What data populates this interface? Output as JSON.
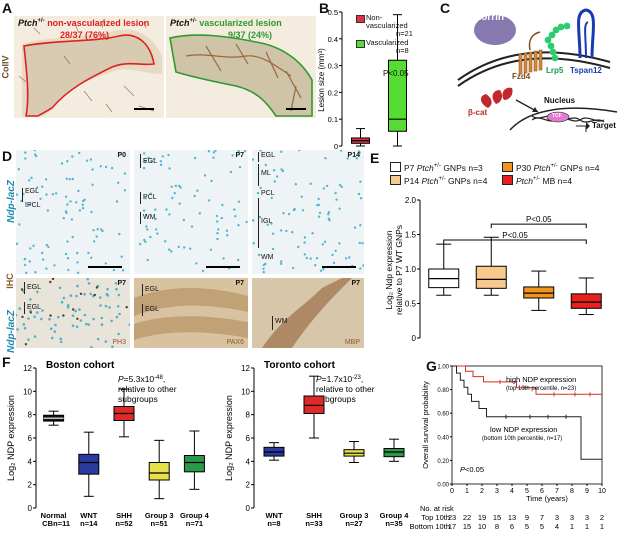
{
  "figure": {
    "panel_letters": [
      "A",
      "B",
      "C",
      "D",
      "E",
      "F",
      "G"
    ],
    "panel_a": {
      "left_label_genotype": "Ptch",
      "left_label_sup": "+/-",
      "left_label_rest": " non-vascularized lesion",
      "left_count": "28/37 (76%)",
      "right_label_genotype": "Ptch",
      "right_label_sup": "+/-",
      "right_label_rest": " vascularized lesion",
      "right_count": "9/37 (24%)",
      "side_label": "CollV",
      "colors": {
        "red": "#e02020",
        "green": "#2e9a2e",
        "stain": "#8b5a2b"
      }
    },
    "panel_c": {
      "norrin": "Norrin",
      "fzd4": "Fzd4",
      "lrp5": "Lrp5",
      "tspan12": "Tspan12",
      "beta_cat": "β-cat",
      "nucleus": "Nucleus",
      "tcf": "TCF",
      "target": "Target"
    },
    "panel_d": {
      "side_label_top": "Ndp-lacZ",
      "side_label_ihc": "IHC",
      "side_label_bottom": "Ndp-lacZ",
      "tiles": [
        {
          "age": "P0",
          "labels": [
            "EGL",
            "IPCL"
          ]
        },
        {
          "age": "P7",
          "labels": [
            "EGL",
            "PCL",
            "WM"
          ]
        },
        {
          "age": "P14",
          "labels": [
            "EGL",
            "ML",
            "PCL",
            "IGL",
            "WM"
          ]
        },
        {
          "age": "P7",
          "labels": [
            "EGL",
            "EGL"
          ],
          "marker": "PH3"
        },
        {
          "age": "P7",
          "labels": [
            "EGL",
            "EGL"
          ],
          "marker": "PAX6"
        },
        {
          "age": "P7",
          "labels": [
            "WM"
          ],
          "marker": "MBP"
        }
      ]
    },
    "panel_b": {
      "chart_data": {
        "type": "box",
        "ylabel": "Lesion size (mm³)",
        "ylim": [
          0,
          0.5
        ],
        "yticks": [
          "0",
          "0.1",
          "0.2",
          "0.3",
          "0.4",
          "0.5"
        ],
        "annotation": "P<0.05",
        "series": [
          {
            "name": "Non-vascularized",
            "n": "n=21",
            "color": "#e0304a",
            "min": 0.0,
            "q1": 0.01,
            "median": 0.02,
            "q3": 0.03,
            "max": 0.065
          },
          {
            "name": "Vascularized",
            "n": "n=8",
            "color": "#55dd33",
            "min": 0.0,
            "q1": 0.055,
            "median": 0.1,
            "q3": 0.32,
            "max": 0.49
          }
        ]
      },
      "legend": [
        {
          "line1": "Non-",
          "line2": "vascularized",
          "n": "n=21"
        },
        {
          "line1": "Vascularized",
          "line2": "",
          "n": "n=8"
        }
      ]
    },
    "panel_e": {
      "chart_data": {
        "type": "box",
        "ylabel_line1": "Log",
        "ylabel_line2": "relative to P7 WT GNPs",
        "ylim": [
          0,
          2.0
        ],
        "yticks": [
          "0",
          "0.5",
          "1.0",
          "1.5",
          "2.0"
        ],
        "annotations": [
          "P<0.05",
          "P<0.05"
        ],
        "series": [
          {
            "name": "P7 Ptch+/- GNPs n=3",
            "color": "#ffffff",
            "min": 0.62,
            "q1": 0.73,
            "median": 0.86,
            "q3": 1.0,
            "max": 1.36
          },
          {
            "name": "P14 Ptch+/- GNPs n=4",
            "color": "#f7c98e",
            "min": 0.62,
            "q1": 0.72,
            "median": 0.85,
            "q3": 1.04,
            "max": 1.46
          },
          {
            "name": "P30 Ptch+/- GNPs n=4",
            "color": "#f0941e",
            "min": 0.4,
            "q1": 0.58,
            "median": 0.65,
            "q3": 0.74,
            "max": 0.97
          },
          {
            "name": "Ptch+/- MB n=4",
            "color": "#e8201e",
            "min": 0.34,
            "q1": 0.43,
            "median": 0.52,
            "q3": 0.64,
            "max": 0.87
          }
        ]
      },
      "legend": [
        {
          "pre": "P7 ",
          "gen": "Ptch",
          "sup": "+/-",
          "post": " GNPs n=3",
          "color": "#ffffff"
        },
        {
          "pre": "P30 ",
          "gen": "Ptch",
          "sup": "+/-",
          "post": " GNPs n=4",
          "color": "#f0941e"
        },
        {
          "pre": "P14 ",
          "gen": "Ptch",
          "sup": "+/-",
          "post": " GNPs n=4",
          "color": "#f7c98e"
        },
        {
          "pre": "",
          "gen": "Ptch",
          "sup": "+/-",
          "post": " MB n=4",
          "color": "#e8201e"
        }
      ]
    },
    "panel_f_boston": {
      "title": "Boston cohort",
      "stat_line1": "P=5.3x10",
      "stat_exp": "-48",
      "stat_line1_end": ",",
      "stat_line2": "relative to other",
      "stat_line3": "subgroups",
      "chart_data": {
        "type": "box",
        "ylabel": "Log2 NDP expression",
        "ylim": [
          0,
          12
        ],
        "yticks": [
          "0",
          "2",
          "4",
          "6",
          "8",
          "10",
          "12"
        ],
        "categories": [
          "Normal CB",
          "WNT",
          "SHH",
          "Group 3",
          "Group 4"
        ],
        "series": [
          {
            "name": "Normal",
            "sub": "CB",
            "n": "n=11",
            "color": "#111111",
            "min": 7.1,
            "q1": 7.45,
            "median": 7.7,
            "q3": 7.95,
            "max": 8.3
          },
          {
            "name": "WNT",
            "sub": "",
            "n": "n=14",
            "color": "#2a3a9e",
            "min": 1.0,
            "q1": 2.9,
            "median": 3.9,
            "q3": 4.6,
            "max": 6.5
          },
          {
            "name": "SHH",
            "sub": "",
            "n": "n=52",
            "color": "#e02a2a",
            "min": 6.1,
            "q1": 7.5,
            "median": 8.1,
            "q3": 8.7,
            "max": 10.2
          },
          {
            "name": "Group 3",
            "sub": "",
            "n": "n=51",
            "color": "#e6e04a",
            "min": 0.8,
            "q1": 2.4,
            "median": 3.0,
            "q3": 3.9,
            "max": 5.8
          },
          {
            "name": "Group 4",
            "sub": "",
            "n": "n=71",
            "color": "#2a9a4a",
            "min": 1.6,
            "q1": 3.1,
            "median": 3.9,
            "q3": 4.5,
            "max": 6.6
          }
        ]
      }
    },
    "panel_f_toronto": {
      "title": "Toronto cohort",
      "stat_line1": "P=1.7x10",
      "stat_exp": "-23",
      "stat_line1_end": ",",
      "stat_line2": "relative to other",
      "stat_line3": "subgroups",
      "chart_data": {
        "type": "box",
        "ylabel": "Log2 NDP expression",
        "ylim": [
          0,
          12
        ],
        "yticks": [
          "0",
          "2",
          "4",
          "6",
          "8",
          "10",
          "12"
        ],
        "categories": [
          "WNT",
          "SHH",
          "Group 3",
          "Group 4"
        ],
        "series": [
          {
            "name": "WNT",
            "n": "n=8",
            "color": "#2a3a9e",
            "min": 4.1,
            "q1": 4.45,
            "median": 4.8,
            "q3": 5.2,
            "max": 5.6
          },
          {
            "name": "SHH",
            "n": "n=33",
            "color": "#e02a2a",
            "min": 6.0,
            "q1": 8.1,
            "median": 8.8,
            "q3": 9.6,
            "max": 11.3
          },
          {
            "name": "Group 3",
            "n": "n=27",
            "color": "#e6e04a",
            "min": 3.9,
            "q1": 4.45,
            "median": 4.7,
            "q3": 5.0,
            "max": 5.7
          },
          {
            "name": "Group 4",
            "n": "n=35",
            "color": "#2a9a4a",
            "min": 4.0,
            "q1": 4.4,
            "median": 4.8,
            "q3": 5.1,
            "max": 5.9
          }
        ]
      }
    },
    "panel_g": {
      "chart_data": {
        "type": "line",
        "xlabel": "Time (years)",
        "ylabel": "Overall survival probability",
        "xlim": [
          0,
          10
        ],
        "ylim": [
          0,
          1.0
        ],
        "xticks": [
          "0",
          "1",
          "2",
          "3",
          "4",
          "5",
          "6",
          "7",
          "8",
          "9",
          "10"
        ],
        "yticks": [
          "0.00",
          "0.20",
          "0.40",
          "0.60",
          "0.80",
          "1.00"
        ],
        "annotation": "P<0.05",
        "series": [
          {
            "name": "high NDP expression",
            "color": "#d03020",
            "x": [
              0,
              0.9,
              0.9,
              1.4,
              1.4,
              2.1,
              2.1,
              4.3,
              4.3,
              5.6,
              5.6,
              10
            ],
            "y": [
              1.0,
              1.0,
              0.955,
              0.955,
              0.91,
              0.91,
              0.865,
              0.865,
              0.815,
              0.815,
              0.76,
              0.76
            ]
          },
          {
            "name": "low NDP expression",
            "color": "#222222",
            "x": [
              0,
              0.3,
              0.3,
              0.55,
              0.55,
              0.8,
              0.8,
              1.05,
              1.05,
              1.3,
              1.3,
              1.8,
              1.8,
              2.3,
              2.3,
              8.6,
              8.6,
              10
            ],
            "y": [
              1.0,
              1.0,
              0.94,
              0.94,
              0.88,
              0.88,
              0.82,
              0.82,
              0.76,
              0.76,
              0.7,
              0.7,
              0.64,
              0.64,
              0.57,
              0.57,
              0.21,
              0.21
            ]
          }
        ]
      },
      "high_label_line1": "high NDP expression",
      "high_label_line2": "(top 10th percentile, n=23)",
      "low_label_line1": "low NDP expression",
      "low_label_line2": "(bottom 10th percentile, n=17)",
      "risk_title": "No. at risk",
      "risk_rows": [
        {
          "label": "Top 10th",
          "values": [
            "23",
            "22",
            "19",
            "15",
            "13",
            "9",
            "7",
            "3",
            "3",
            "3",
            "2"
          ]
        },
        {
          "label": "Bottom 10th",
          "values": [
            "17",
            "15",
            "10",
            "8",
            "6",
            "5",
            "5",
            "4",
            "1",
            "1",
            "1"
          ]
        }
      ]
    }
  }
}
